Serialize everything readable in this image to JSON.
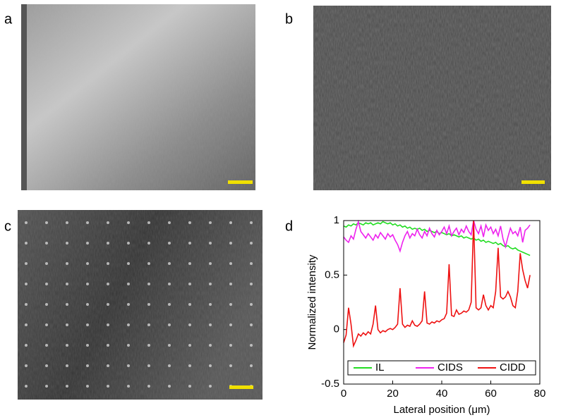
{
  "panel_labels": [
    "a",
    "b",
    "c",
    "d"
  ],
  "chart_data": {
    "type": "line",
    "xlabel": "Lateral position (μm)",
    "ylabel": "Normalized intensity",
    "x": [
      0,
      1,
      2,
      3,
      4,
      5,
      6,
      7,
      8,
      9,
      10,
      11,
      12,
      13,
      14,
      15,
      16,
      17,
      18,
      19,
      20,
      21,
      22,
      23,
      24,
      25,
      26,
      27,
      28,
      29,
      30,
      31,
      32,
      33,
      34,
      35,
      36,
      37,
      38,
      39,
      40,
      41,
      42,
      43,
      44,
      45,
      46,
      47,
      48,
      49,
      50,
      51,
      52,
      53,
      54,
      55,
      56,
      57,
      58,
      59,
      60,
      61,
      62,
      63,
      64,
      65,
      66,
      67,
      68,
      69,
      70,
      71,
      72,
      73,
      74,
      75,
      76
    ],
    "series": [
      {
        "name": "IL",
        "color": "#22dd22",
        "values": [
          0.95,
          0.94,
          0.96,
          0.95,
          0.97,
          0.96,
          0.98,
          0.97,
          0.96,
          0.98,
          0.97,
          0.98,
          0.96,
          0.97,
          0.98,
          0.97,
          0.99,
          0.98,
          0.97,
          0.98,
          0.96,
          0.97,
          0.95,
          0.96,
          0.94,
          0.95,
          0.93,
          0.94,
          0.92,
          0.93,
          0.92,
          0.93,
          0.91,
          0.92,
          0.9,
          0.91,
          0.9,
          0.89,
          0.9,
          0.88,
          0.89,
          0.88,
          0.87,
          0.88,
          0.86,
          0.87,
          0.86,
          0.85,
          0.86,
          0.84,
          0.85,
          0.84,
          0.83,
          0.84,
          0.82,
          0.83,
          0.81,
          0.82,
          0.8,
          0.81,
          0.8,
          0.79,
          0.8,
          0.78,
          0.79,
          0.77,
          0.76,
          0.77,
          0.75,
          0.74,
          0.75,
          0.73,
          0.72,
          0.71,
          0.7,
          0.69,
          0.68
        ]
      },
      {
        "name": "CIDS",
        "color": "#ee22ee",
        "values": [
          0.85,
          0.82,
          0.8,
          0.86,
          0.83,
          0.92,
          0.99,
          0.9,
          0.87,
          0.84,
          0.88,
          0.85,
          0.82,
          0.87,
          0.84,
          0.89,
          0.86,
          0.83,
          0.88,
          0.85,
          0.87,
          0.82,
          0.78,
          0.72,
          0.8,
          0.86,
          0.9,
          0.84,
          0.88,
          0.86,
          0.92,
          0.87,
          0.84,
          0.9,
          0.86,
          0.93,
          0.88,
          0.85,
          0.91,
          0.87,
          0.9,
          0.94,
          0.88,
          0.95,
          0.86,
          0.9,
          0.93,
          0.87,
          0.92,
          0.89,
          0.95,
          0.9,
          0.87,
          1.0,
          0.92,
          0.88,
          0.95,
          0.85,
          0.96,
          0.91,
          0.94,
          0.88,
          0.92,
          0.86,
          0.95,
          0.83,
          0.76,
          0.85,
          0.93,
          0.88,
          0.9,
          0.86,
          0.94,
          0.8,
          0.91,
          0.93,
          0.96
        ]
      },
      {
        "name": "CIDD",
        "color": "#ee1111",
        "values": [
          -0.12,
          -0.05,
          0.2,
          0.05,
          -0.15,
          -0.1,
          -0.04,
          -0.06,
          -0.03,
          -0.05,
          -0.02,
          -0.04,
          0.05,
          0.22,
          0.0,
          -0.03,
          -0.01,
          -0.02,
          0.0,
          0.01,
          0.0,
          0.02,
          0.05,
          0.38,
          0.05,
          0.02,
          0.04,
          0.03,
          0.08,
          0.04,
          0.03,
          0.05,
          0.08,
          0.35,
          0.06,
          0.05,
          0.07,
          0.06,
          0.08,
          0.07,
          0.09,
          0.1,
          0.15,
          0.6,
          0.13,
          0.12,
          0.18,
          0.14,
          0.15,
          0.17,
          0.16,
          0.18,
          0.25,
          1.0,
          0.2,
          0.18,
          0.2,
          0.32,
          0.22,
          0.18,
          0.22,
          0.2,
          0.35,
          0.75,
          0.3,
          0.28,
          0.3,
          0.35,
          0.3,
          0.22,
          0.2,
          0.35,
          0.7,
          0.55,
          0.45,
          0.38,
          0.5
        ]
      }
    ],
    "xlim": [
      0,
      80
    ],
    "xticks": [
      0,
      20,
      40,
      60,
      80
    ],
    "ylim": [
      -0.5,
      1
    ],
    "yticks": [
      -0.5,
      0,
      0.5,
      1
    ],
    "legend": "lower"
  }
}
